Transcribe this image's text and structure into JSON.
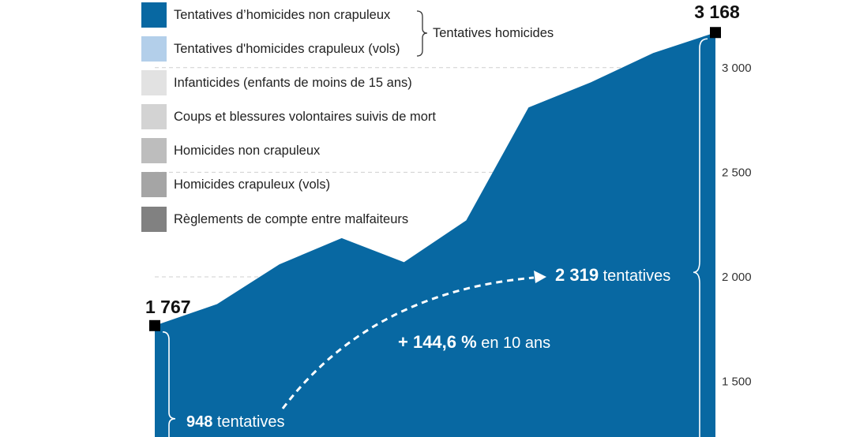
{
  "legend": {
    "items": [
      {
        "label": "Tentatives d’homicides non crapuleux",
        "color": "#0868a2"
      },
      {
        "label": "Tentatives d'homicides crapuleux (vols)",
        "color": "#b3cfea"
      },
      {
        "label": "Infanticides (enfants de moins de 15 ans)",
        "color": "#e2e2e2"
      },
      {
        "label": "Coups et blessures volontaires suivis de mort",
        "color": "#d3d3d3"
      },
      {
        "label": "Homicides non crapuleux",
        "color": "#bdbdbd"
      },
      {
        "label": "Homicides crapuleux (vols)",
        "color": "#a5a5a5"
      },
      {
        "label": "Règlements de compte entre malfaiteurs",
        "color": "#818181"
      }
    ],
    "group_label": "Tentatives homicides"
  },
  "chart_data": {
    "type": "area",
    "series": [
      {
        "values": [
          1767,
          1870,
          2060,
          2185,
          2070,
          2270,
          2810,
          2930,
          3070,
          3168
        ],
        "color": "#0868a2"
      }
    ],
    "ylim": [
      1300,
      3250
    ],
    "yticks": [
      1500,
      2000,
      2500,
      3000
    ],
    "ytick_labels": [
      "1 500",
      "2 000",
      "2 500",
      "3 000"
    ],
    "grid": true,
    "start_label": "1 767",
    "end_label": "3 168",
    "annotations": {
      "start_count": "948",
      "start_suffix": " tentatives",
      "end_count": "2 319",
      "end_suffix": " tentatives",
      "change": "+ 144,6 %",
      "change_suffix": " en 10 ans"
    }
  }
}
